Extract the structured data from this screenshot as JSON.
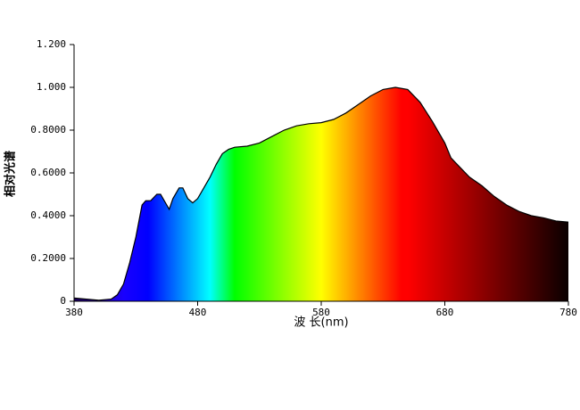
{
  "chart_data": {
    "type": "area",
    "x_label": "波 长(nm)",
    "y_label": "相对光谱",
    "x": [
      380,
      390,
      400,
      410,
      415,
      420,
      425,
      430,
      435,
      438,
      442,
      447,
      450,
      455,
      457,
      460,
      465,
      468,
      472,
      476,
      480,
      485,
      490,
      495,
      500,
      505,
      510,
      520,
      530,
      540,
      550,
      560,
      570,
      580,
      590,
      600,
      610,
      620,
      630,
      640,
      650,
      660,
      670,
      680,
      685,
      690,
      700,
      710,
      720,
      730,
      740,
      750,
      760,
      770,
      780
    ],
    "values": [
      0.015,
      0.01,
      0.005,
      0.01,
      0.03,
      0.08,
      0.18,
      0.3,
      0.45,
      0.47,
      0.47,
      0.5,
      0.5,
      0.45,
      0.43,
      0.48,
      0.53,
      0.53,
      0.48,
      0.46,
      0.48,
      0.53,
      0.58,
      0.64,
      0.69,
      0.71,
      0.72,
      0.725,
      0.74,
      0.77,
      0.8,
      0.82,
      0.83,
      0.835,
      0.85,
      0.88,
      0.92,
      0.96,
      0.99,
      1.0,
      0.99,
      0.93,
      0.84,
      0.74,
      0.67,
      0.64,
      0.58,
      0.54,
      0.49,
      0.45,
      0.42,
      0.4,
      0.39,
      0.375,
      0.37
    ],
    "xlim": [
      380,
      780
    ],
    "xticks": [
      380,
      480,
      580,
      680,
      780
    ],
    "ylim": [
      0,
      1.2
    ],
    "yticks": [
      0,
      {
        "value": 0.2,
        "label": "0.2000"
      },
      {
        "value": 0.4,
        "label": "0.4000"
      },
      {
        "value": 0.6,
        "label": "0.6000"
      },
      {
        "value": 0.8,
        "label": "0.8000"
      },
      {
        "value": 1.0,
        "label": "1.000"
      },
      {
        "value": 1.2,
        "label": "1.200"
      }
    ]
  }
}
